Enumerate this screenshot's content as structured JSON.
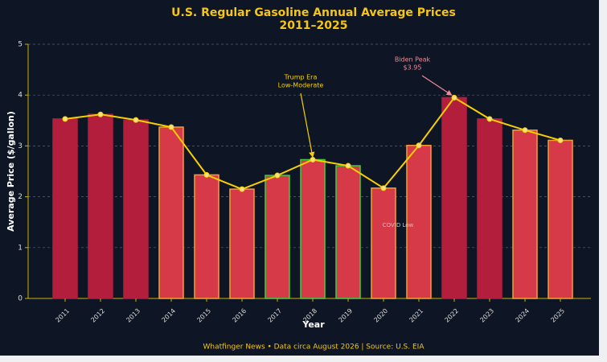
{
  "chart_data": {
    "type": "bar",
    "title": [
      "U.S. Regular Gasoline Annual Average Prices",
      "2011–2025"
    ],
    "x_label": "Year",
    "y_label": "Average Price ($/gallon)",
    "categories": [
      "2011",
      "2012",
      "2013",
      "2014",
      "2015",
      "2016",
      "2017",
      "2018",
      "2019",
      "2020",
      "2021",
      "2022",
      "2023",
      "2024",
      "2025"
    ],
    "values": [
      3.53,
      3.62,
      3.51,
      3.37,
      2.43,
      2.15,
      2.42,
      2.73,
      2.61,
      2.17,
      3.01,
      3.95,
      3.53,
      3.31,
      3.11
    ],
    "colors": [
      "#b21e3c",
      "#b21e3c",
      "#b21e3c",
      "#d63a48",
      "#d63a48",
      "#d63a48",
      "#d63a48",
      "#d63a48",
      "#d63a48",
      "#d63a48",
      "#d63a48",
      "#b21e3c",
      "#b21e3c",
      "#d63a48",
      "#d63a48"
    ],
    "edge_colors": [
      "#b21e3c",
      "#b21e3c",
      "#b21e3c",
      "#f0a030",
      "#f0a030",
      "#f0a030",
      "#3ccf3c",
      "#3ccf3c",
      "#3ccf3c",
      "#f0a030",
      "#f0a030",
      "#b21e3c",
      "#b21e3c",
      "#f0a030",
      "#f0a030"
    ],
    "line_color": "#f5d000",
    "ylim": [
      0,
      5
    ],
    "yticks": [
      0,
      1,
      2,
      3,
      4,
      5
    ],
    "grid": true,
    "annotations": [
      {
        "text": [
          "Trump Era",
          "Low-Moderate"
        ],
        "color": "#f5d000"
      },
      {
        "text": [
          "Biden Peak",
          "$3.95"
        ],
        "color": "#f08a96"
      },
      {
        "text": [
          "COVID Low"
        ],
        "color": "#c8c8c8"
      }
    ],
    "footer": "Whatfinger News • Data circa August 2026 | Source: U.S. EIA"
  }
}
